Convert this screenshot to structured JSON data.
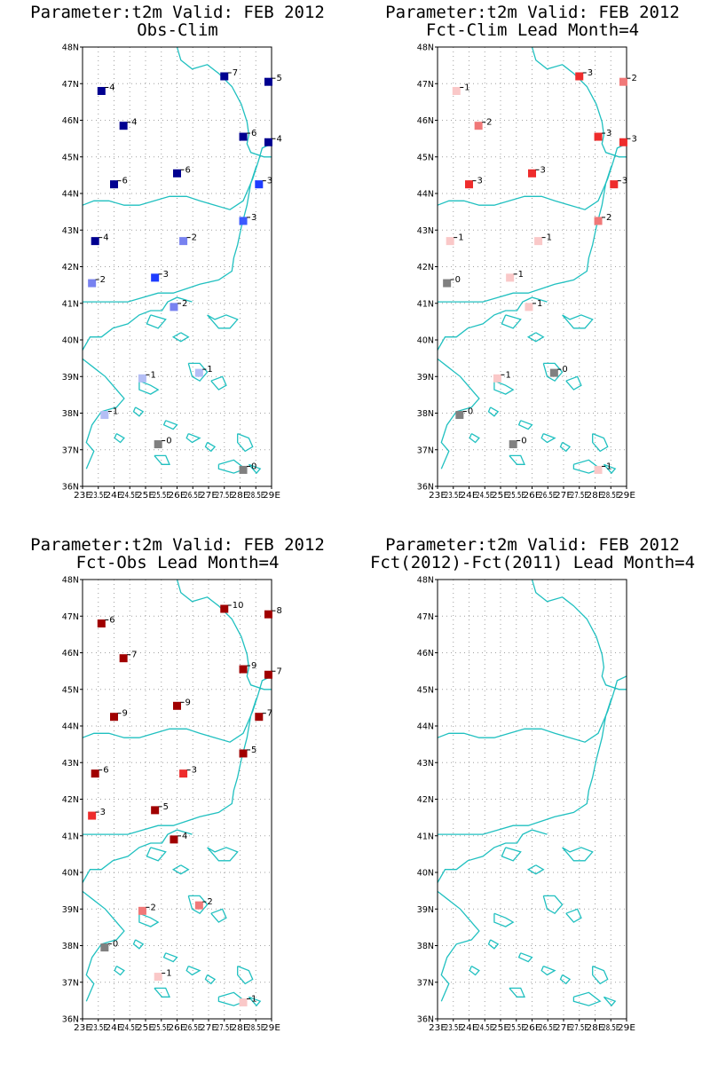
{
  "figure": {
    "panels": [
      {
        "title1": "Parameter:t2m Valid: FEB 2012",
        "title2": "Obs-Clim"
      },
      {
        "title1": "Parameter:t2m Valid: FEB 2012",
        "title2": "Fct-Clim Lead Month=4"
      },
      {
        "title1": "Parameter:t2m Valid: FEB 2012",
        "title2": "Fct-Obs Lead Month=4"
      },
      {
        "title1": "Parameter:t2m Valid: FEB 2012",
        "title2": "Fct(2012)-Fct(2011) Lead Month=4"
      }
    ]
  },
  "chart_data": [
    {
      "type": "scatter",
      "title": "Parameter:t2m Valid: FEB 2012 Obs-Clim",
      "xlim": [
        23,
        29
      ],
      "ylim": [
        36,
        48
      ],
      "x_ticks": [
        "23E",
        "23.5E",
        "24E",
        "24.5E",
        "25E",
        "25.5E",
        "26E",
        "26.5E",
        "27E",
        "27.5E",
        "28E",
        "28.5E",
        "29E"
      ],
      "y_ticks": [
        "36N",
        "37N",
        "38N",
        "39N",
        "40N",
        "41N",
        "42N",
        "43N",
        "44N",
        "45N",
        "46N",
        "47N",
        "48N"
      ],
      "points": [
        {
          "lon": 23.6,
          "lat": 46.8,
          "value": "4",
          "color": "#000090"
        },
        {
          "lon": 27.5,
          "lat": 47.2,
          "value": "7",
          "color": "#000090"
        },
        {
          "lon": 28.9,
          "lat": 47.05,
          "value": "5",
          "color": "#000090"
        },
        {
          "lon": 24.3,
          "lat": 45.85,
          "value": "4",
          "color": "#000090"
        },
        {
          "lon": 28.1,
          "lat": 45.55,
          "value": "6",
          "color": "#000090"
        },
        {
          "lon": 28.9,
          "lat": 45.4,
          "value": "4",
          "color": "#000090"
        },
        {
          "lon": 26.0,
          "lat": 44.55,
          "value": "6",
          "color": "#000090"
        },
        {
          "lon": 24.0,
          "lat": 44.25,
          "value": "6",
          "color": "#000090"
        },
        {
          "lon": 28.6,
          "lat": 44.25,
          "value": "3",
          "color": "#1e3cff"
        },
        {
          "lon": 28.1,
          "lat": 43.25,
          "value": "3",
          "color": "#3c5aff"
        },
        {
          "lon": 23.4,
          "lat": 42.7,
          "value": "4",
          "color": "#000090"
        },
        {
          "lon": 26.2,
          "lat": 42.7,
          "value": "2",
          "color": "#7882f0"
        },
        {
          "lon": 25.3,
          "lat": 41.7,
          "value": "3",
          "color": "#1e3cff"
        },
        {
          "lon": 23.3,
          "lat": 41.55,
          "value": "2",
          "color": "#7882f0"
        },
        {
          "lon": 25.9,
          "lat": 40.9,
          "value": "2",
          "color": "#7882f0"
        },
        {
          "lon": 26.7,
          "lat": 39.1,
          "value": "1",
          "color": "#b4bef5"
        },
        {
          "lon": 24.9,
          "lat": 38.95,
          "value": "1",
          "color": "#b4bef5"
        },
        {
          "lon": 23.7,
          "lat": 37.95,
          "value": "1",
          "color": "#b4bef5"
        },
        {
          "lon": 25.4,
          "lat": 37.15,
          "value": "0",
          "color": "#808080"
        },
        {
          "lon": 28.1,
          "lat": 36.45,
          "value": "0",
          "color": "#808080"
        }
      ]
    },
    {
      "type": "scatter",
      "title": "Parameter:t2m Valid: FEB 2012 Fct-Clim Lead Month=4",
      "xlim": [
        23,
        29
      ],
      "ylim": [
        36,
        48
      ],
      "x_ticks": [
        "23E",
        "23.5E",
        "24E",
        "24.5E",
        "25E",
        "25.5E",
        "26E",
        "26.5E",
        "27E",
        "27.5E",
        "28E",
        "28.5E",
        "29E"
      ],
      "y_ticks": [
        "36N",
        "37N",
        "38N",
        "39N",
        "40N",
        "41N",
        "42N",
        "43N",
        "44N",
        "45N",
        "46N",
        "47N",
        "48N"
      ],
      "points": [
        {
          "lon": 23.6,
          "lat": 46.8,
          "value": "1",
          "color": "#fac8c8"
        },
        {
          "lon": 27.5,
          "lat": 47.2,
          "value": "3",
          "color": "#ee2c2c"
        },
        {
          "lon": 28.9,
          "lat": 47.05,
          "value": "2",
          "color": "#f07878"
        },
        {
          "lon": 24.3,
          "lat": 45.85,
          "value": "2",
          "color": "#f07878"
        },
        {
          "lon": 28.1,
          "lat": 45.55,
          "value": "3",
          "color": "#ee2c2c"
        },
        {
          "lon": 28.9,
          "lat": 45.4,
          "value": "3",
          "color": "#ee2c2c"
        },
        {
          "lon": 26.0,
          "lat": 44.55,
          "value": "3",
          "color": "#ee2c2c"
        },
        {
          "lon": 24.0,
          "lat": 44.25,
          "value": "3",
          "color": "#ee2c2c"
        },
        {
          "lon": 28.6,
          "lat": 44.25,
          "value": "3",
          "color": "#ee2c2c"
        },
        {
          "lon": 28.1,
          "lat": 43.25,
          "value": "2",
          "color": "#f07878"
        },
        {
          "lon": 23.4,
          "lat": 42.7,
          "value": "1",
          "color": "#fac8c8"
        },
        {
          "lon": 26.2,
          "lat": 42.7,
          "value": "1",
          "color": "#fac8c8"
        },
        {
          "lon": 25.3,
          "lat": 41.7,
          "value": "1",
          "color": "#fac8c8"
        },
        {
          "lon": 23.3,
          "lat": 41.55,
          "value": "0",
          "color": "#808080"
        },
        {
          "lon": 25.9,
          "lat": 40.9,
          "value": "1",
          "color": "#fac8c8"
        },
        {
          "lon": 26.7,
          "lat": 39.1,
          "value": "0",
          "color": "#808080"
        },
        {
          "lon": 24.9,
          "lat": 38.95,
          "value": "1",
          "color": "#fac8c8"
        },
        {
          "lon": 23.7,
          "lat": 37.95,
          "value": "0",
          "color": "#808080"
        },
        {
          "lon": 25.4,
          "lat": 37.15,
          "value": "0",
          "color": "#808080"
        },
        {
          "lon": 28.1,
          "lat": 36.45,
          "value": "1",
          "color": "#fac8c8"
        }
      ]
    },
    {
      "type": "scatter",
      "title": "Parameter:t2m Valid: FEB 2012 Fct-Obs Lead Month=4",
      "xlim": [
        23,
        29
      ],
      "ylim": [
        36,
        48
      ],
      "x_ticks": [
        "23E",
        "23.5E",
        "24E",
        "24.5E",
        "25E",
        "25.5E",
        "26E",
        "26.5E",
        "27E",
        "27.5E",
        "28E",
        "28.5E",
        "29E"
      ],
      "y_ticks": [
        "36N",
        "37N",
        "38N",
        "39N",
        "40N",
        "41N",
        "42N",
        "43N",
        "44N",
        "45N",
        "46N",
        "47N",
        "48N"
      ],
      "points": [
        {
          "lon": 23.6,
          "lat": 46.8,
          "value": "6",
          "color": "#a00000"
        },
        {
          "lon": 27.5,
          "lat": 47.2,
          "value": "10",
          "color": "#a00000"
        },
        {
          "lon": 28.9,
          "lat": 47.05,
          "value": "8",
          "color": "#a00000"
        },
        {
          "lon": 24.3,
          "lat": 45.85,
          "value": "7",
          "color": "#a00000"
        },
        {
          "lon": 28.1,
          "lat": 45.55,
          "value": "9",
          "color": "#a00000"
        },
        {
          "lon": 28.9,
          "lat": 45.4,
          "value": "7",
          "color": "#a00000"
        },
        {
          "lon": 26.0,
          "lat": 44.55,
          "value": "9",
          "color": "#a00000"
        },
        {
          "lon": 24.0,
          "lat": 44.25,
          "value": "9",
          "color": "#a00000"
        },
        {
          "lon": 28.6,
          "lat": 44.25,
          "value": "7",
          "color": "#a00000"
        },
        {
          "lon": 28.1,
          "lat": 43.25,
          "value": "5",
          "color": "#a00000"
        },
        {
          "lon": 23.4,
          "lat": 42.7,
          "value": "6",
          "color": "#a00000"
        },
        {
          "lon": 26.2,
          "lat": 42.7,
          "value": "3",
          "color": "#ee2c2c"
        },
        {
          "lon": 25.3,
          "lat": 41.7,
          "value": "5",
          "color": "#a00000"
        },
        {
          "lon": 23.3,
          "lat": 41.55,
          "value": "3",
          "color": "#ee2c2c"
        },
        {
          "lon": 25.9,
          "lat": 40.9,
          "value": "4",
          "color": "#a00000"
        },
        {
          "lon": 26.7,
          "lat": 39.1,
          "value": "2",
          "color": "#f07878"
        },
        {
          "lon": 24.9,
          "lat": 38.95,
          "value": "2",
          "color": "#f07878"
        },
        {
          "lon": 23.7,
          "lat": 37.95,
          "value": "0",
          "color": "#808080"
        },
        {
          "lon": 25.4,
          "lat": 37.15,
          "value": "1",
          "color": "#fac8c8"
        },
        {
          "lon": 28.1,
          "lat": 36.45,
          "value": "1",
          "color": "#fac8c8"
        }
      ]
    },
    {
      "type": "scatter",
      "title": "Parameter:t2m Valid: FEB 2012 Fct(2012)-Fct(2011) Lead Month=4",
      "xlim": [
        23,
        29
      ],
      "ylim": [
        36,
        48
      ],
      "x_ticks": [
        "23E",
        "23.5E",
        "24E",
        "24.5E",
        "25E",
        "25.5E",
        "26E",
        "26.5E",
        "27E",
        "27.5E",
        "28E",
        "28.5E",
        "29E"
      ],
      "y_ticks": [
        "36N",
        "37N",
        "38N",
        "39N",
        "40N",
        "41N",
        "42N",
        "43N",
        "44N",
        "45N",
        "46N",
        "47N",
        "48N"
      ],
      "points": []
    }
  ],
  "colors": {
    "coastline": "#20c0c0",
    "grid": "#a0a0a0",
    "frame": "#000000"
  }
}
